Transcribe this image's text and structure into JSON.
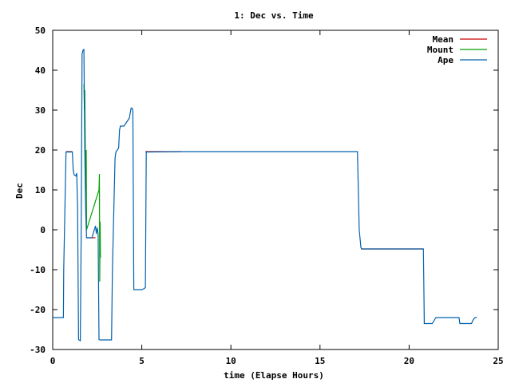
{
  "chart_data": {
    "type": "line",
    "title": "1: Dec vs. Time",
    "xlabel": "time (Elapse Hours)",
    "ylabel": "Dec",
    "xlim": [
      0,
      25
    ],
    "ylim": [
      -30,
      50
    ],
    "xticks": [
      0,
      5,
      10,
      15,
      20,
      25
    ],
    "yticks": [
      -30,
      -20,
      -10,
      0,
      10,
      20,
      30,
      40,
      50
    ],
    "grid": false,
    "legend_position": "top-right",
    "series": [
      {
        "name": "Mean",
        "color": "#cc0000",
        "x": [
          0.75,
          1.1,
          1.9,
          2.4,
          5.2,
          7.2,
          17.3,
          20.8
        ],
        "y": [
          19.6,
          19.6,
          -2.0,
          -2.0,
          19.6,
          19.6,
          -4.8,
          -4.8
        ],
        "segments": [
          [
            0,
            1
          ],
          [
            2,
            3
          ],
          [
            4,
            5
          ],
          [
            6,
            7
          ]
        ]
      },
      {
        "name": "Mount",
        "color": "#00a000",
        "x": [
          1.75,
          1.78,
          1.8,
          1.85,
          1.88,
          1.9,
          2.6,
          2.62,
          2.64,
          2.66,
          2.68
        ],
        "y": [
          36.5,
          30.0,
          35.0,
          10.0,
          20.0,
          0.0,
          10.0,
          14.0,
          -13.0,
          2.0,
          -7.0
        ]
      },
      {
        "name": "Ape",
        "color": "#0060ad",
        "x": [
          0.0,
          0.6,
          0.62,
          0.75,
          1.1,
          1.15,
          1.2,
          1.3,
          1.35,
          1.4,
          1.45,
          1.55,
          1.6,
          1.65,
          1.7,
          1.75,
          1.8,
          1.85,
          1.9,
          2.0,
          2.2,
          2.4,
          2.45,
          2.5,
          2.55,
          2.6,
          2.65,
          2.7,
          3.3,
          3.35,
          3.5,
          3.55,
          3.7,
          3.75,
          3.8,
          3.85,
          4.0,
          4.3,
          4.4,
          4.45,
          4.5,
          4.55,
          5.0,
          5.1,
          5.2,
          5.25,
          7.2,
          17.1,
          17.2,
          17.3,
          17.35,
          20.8,
          20.85,
          20.9,
          21.3,
          21.5,
          21.6,
          22.8,
          22.85,
          23.5,
          23.6,
          23.7,
          23.8
        ],
        "y": [
          -22.0,
          -22.0,
          -10.0,
          19.5,
          19.5,
          15.0,
          13.8,
          13.5,
          14.2,
          5.0,
          -27.5,
          -27.8,
          0.0,
          44.0,
          45.0,
          45.2,
          20.0,
          5.0,
          -2.0,
          -2.0,
          -2.0,
          1.0,
          -1.0,
          0.5,
          -1.0,
          -27.5,
          -27.6,
          -27.6,
          -27.6,
          -10.0,
          18.0,
          19.5,
          20.5,
          25.0,
          26.0,
          26.0,
          26.0,
          28.0,
          30.5,
          30.5,
          30.0,
          -15.0,
          -15.0,
          -14.8,
          -14.5,
          19.5,
          19.6,
          19.6,
          0.0,
          -4.5,
          -4.8,
          -4.8,
          -23.5,
          -23.5,
          -23.5,
          -22.0,
          -22.0,
          -22.0,
          -23.5,
          -23.5,
          -22.5,
          -22.0,
          -22.0
        ]
      }
    ]
  }
}
